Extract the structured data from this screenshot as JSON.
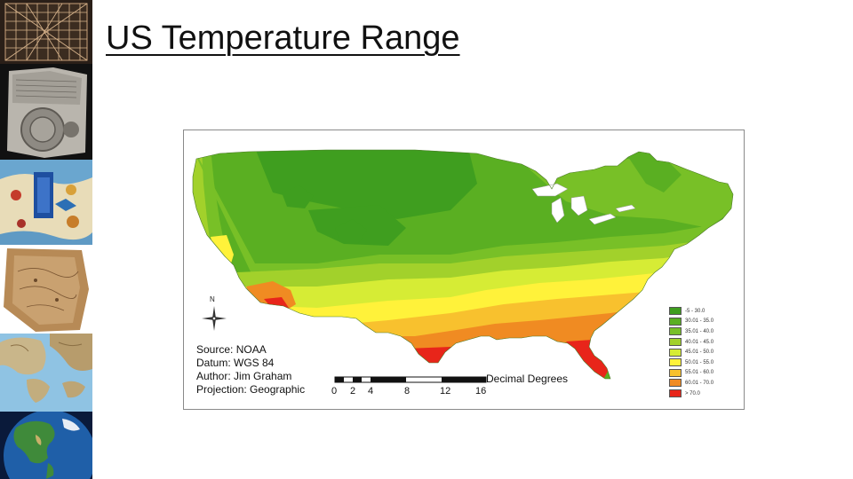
{
  "slide": {
    "title": "US Temperature Range"
  },
  "map": {
    "north_label": "N",
    "info_lines": [
      "Source: NOAA",
      "Datum: WGS 84",
      "Author: Jim Graham",
      "Projection: Geographic"
    ],
    "scale": {
      "title": "Decimal Degrees",
      "ticks": [
        "0",
        "2",
        "4",
        "8",
        "12",
        "16"
      ]
    },
    "legend": [
      {
        "label": "-5 - 30.0",
        "color": "#3f9e1f"
      },
      {
        "label": "30.01 - 35.0",
        "color": "#5aaf22"
      },
      {
        "label": "35.01 - 40.0",
        "color": "#78c027"
      },
      {
        "label": "40.01 - 45.0",
        "color": "#a2d12b"
      },
      {
        "label": "45.01 - 50.0",
        "color": "#d6ec35"
      },
      {
        "label": "50.01 - 55.0",
        "color": "#fff23a"
      },
      {
        "label": "55.01 - 60.0",
        "color": "#f8c12e"
      },
      {
        "label": "60.01 - 70.0",
        "color": "#f08b22"
      },
      {
        "label": "> 70.0",
        "color": "#e8251a"
      }
    ]
  },
  "thumbnails": [
    {
      "name": "grid-map-thumbnail"
    },
    {
      "name": "clay-tablet-map-thumbnail"
    },
    {
      "name": "illustrated-map-thumbnail"
    },
    {
      "name": "parchment-map-thumbnail"
    },
    {
      "name": "relief-map-thumbnail"
    },
    {
      "name": "globe-thumbnail"
    }
  ]
}
